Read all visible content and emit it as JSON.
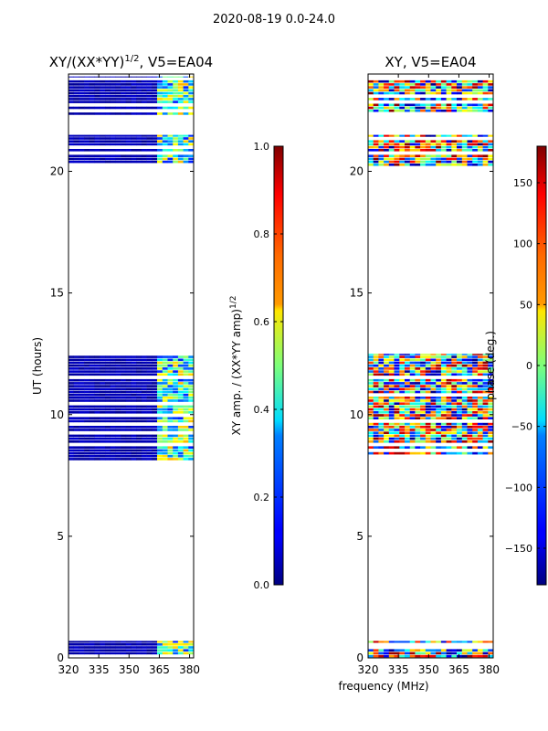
{
  "suptitle": "2020-08-19 0.0-24.0",
  "xlabel_shared": "frequency (MHz)",
  "colors": {
    "frame": "#000000",
    "background": "#ffffff"
  },
  "chart_data": [
    {
      "type": "heatmap",
      "title_prefix": "XY/(XX*YY)",
      "title_exp": "1/2",
      "title_suffix": ", V5=EA04",
      "xlabel": "",
      "ylabel": "UT (hours)",
      "xlim": [
        320,
        382
      ],
      "ylim": [
        0,
        24
      ],
      "xticks": [
        320,
        335,
        350,
        365,
        380
      ],
      "yticks": [
        0,
        5,
        10,
        15,
        20
      ],
      "populated_ut_ranges": [
        [
          0.0,
          0.7
        ],
        [
          8.1,
          12.5
        ],
        [
          20.2,
          21.5
        ],
        [
          22.3,
          23.9
        ]
      ],
      "colorbar": {
        "label_prefix": "XY amp. / (XX*YY amp)",
        "label_exp": "1/2",
        "range": [
          0.0,
          1.0
        ],
        "ticks": [
          "0.0",
          "0.2",
          "0.4",
          "0.6",
          "0.8",
          "1.0"
        ],
        "colormap": "jet"
      }
    },
    {
      "type": "heatmap",
      "title_prefix": "XY, V5=EA04",
      "xlabel": "frequency (MHz)",
      "ylabel": "",
      "xlim": [
        320,
        382
      ],
      "ylim": [
        0,
        24
      ],
      "xticks": [
        320,
        335,
        350,
        365,
        380
      ],
      "yticks": [
        0,
        5,
        10,
        15,
        20
      ],
      "populated_ut_ranges": [
        [
          0.0,
          0.7
        ],
        [
          8.1,
          12.5
        ],
        [
          20.2,
          21.5
        ],
        [
          22.3,
          23.9
        ]
      ],
      "colorbar": {
        "label": "phase (deg.)",
        "range": [
          -180,
          180
        ],
        "ticks": [
          "−150",
          "−100",
          "−50",
          "0",
          "50",
          "100",
          "150"
        ],
        "colormap": "jet"
      }
    }
  ]
}
